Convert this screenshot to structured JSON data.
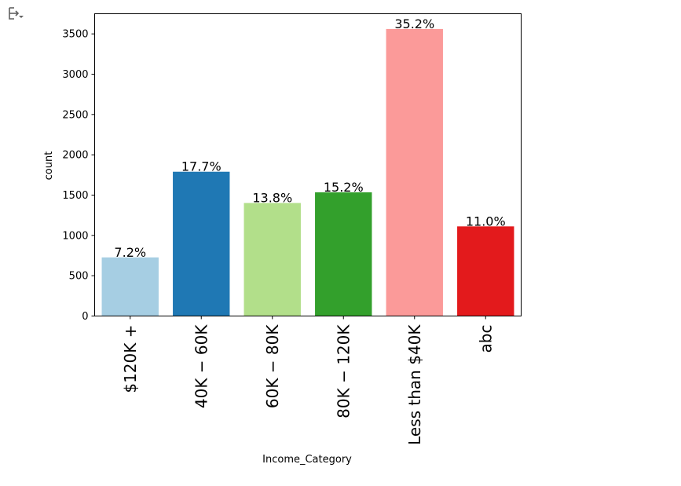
{
  "toolbar": {
    "icon": "output-options-icon"
  },
  "chart_data": {
    "type": "bar",
    "xlabel": "Income_Category",
    "ylabel": "count",
    "ylim": [
      0,
      3750
    ],
    "yticks": [
      0,
      500,
      1000,
      1500,
      2000,
      2500,
      3000,
      3500
    ],
    "categories": [
      "$120K +",
      "40K − 60K",
      "60K − 80K",
      "80K − 120K",
      "Less than $40K",
      "abc"
    ],
    "values": [
      727,
      1790,
      1402,
      1535,
      3561,
      1112
    ],
    "labels": [
      "7.2%",
      "17.7%",
      "13.8%",
      "15.2%",
      "35.2%",
      "11.0%"
    ],
    "colors": [
      "#a6cee3",
      "#1f78b4",
      "#b2df8a",
      "#33a02c",
      "#fb9a99",
      "#e31a1c"
    ],
    "grid": false,
    "legend": "none"
  }
}
